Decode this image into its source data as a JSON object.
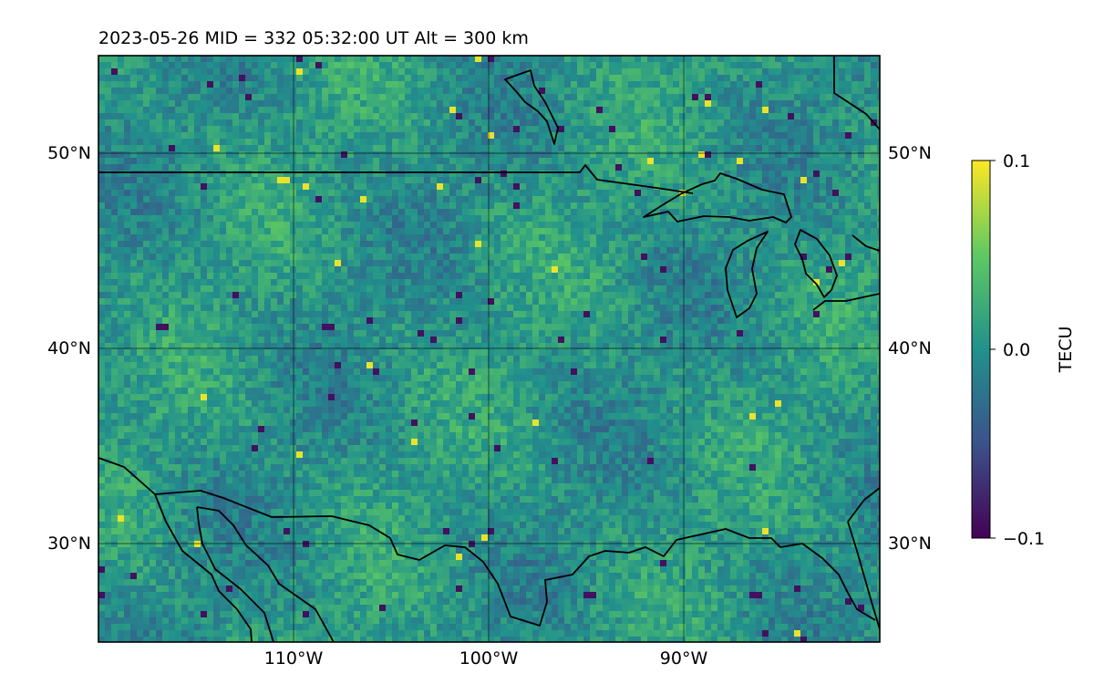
{
  "title": "2023-05-26  MID = 332    05:32:00  UT  Alt = 300 km",
  "map": {
    "lon_range": [
      -120,
      -80
    ],
    "lat_range": [
      25,
      55
    ],
    "gridlines": {
      "lon": [
        -110,
        -100,
        -90
      ],
      "lat": [
        30,
        40,
        50
      ],
      "lon_labels": [
        "110°W",
        "100°W",
        "90°W"
      ],
      "lat_labels": [
        "30°N",
        "40°N",
        "50°N"
      ]
    },
    "colormap": "viridis",
    "field": "TEC perturbation"
  },
  "colorbar": {
    "label": "TECU",
    "min": -0.1,
    "max": 0.1,
    "ticks": [
      "0.1",
      "0.0",
      "−0.1"
    ],
    "colors": [
      "#440154",
      "#3b528b",
      "#21918c",
      "#5ec962",
      "#fde725"
    ]
  }
}
